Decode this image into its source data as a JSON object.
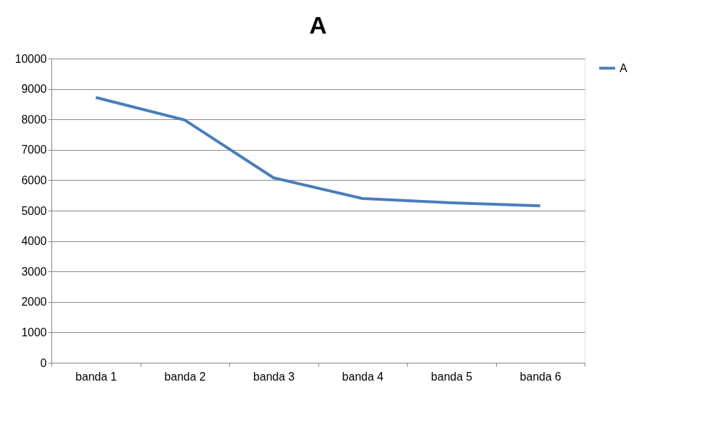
{
  "chart_data": {
    "type": "line",
    "title": "A",
    "categories": [
      "banda 1",
      "banda 2",
      "banda 3",
      "banda 4",
      "banda 5",
      "banda 6"
    ],
    "series": [
      {
        "name": "A",
        "color": "#4a7ebb",
        "values": [
          8720,
          7980,
          6080,
          5400,
          5260,
          5160
        ]
      }
    ],
    "ylim": [
      0,
      10000
    ],
    "yticks": [
      0,
      1000,
      2000,
      3000,
      4000,
      5000,
      6000,
      7000,
      8000,
      9000,
      10000
    ],
    "grid": "y",
    "legend": "right",
    "marker": "none",
    "line_style": "solid"
  }
}
